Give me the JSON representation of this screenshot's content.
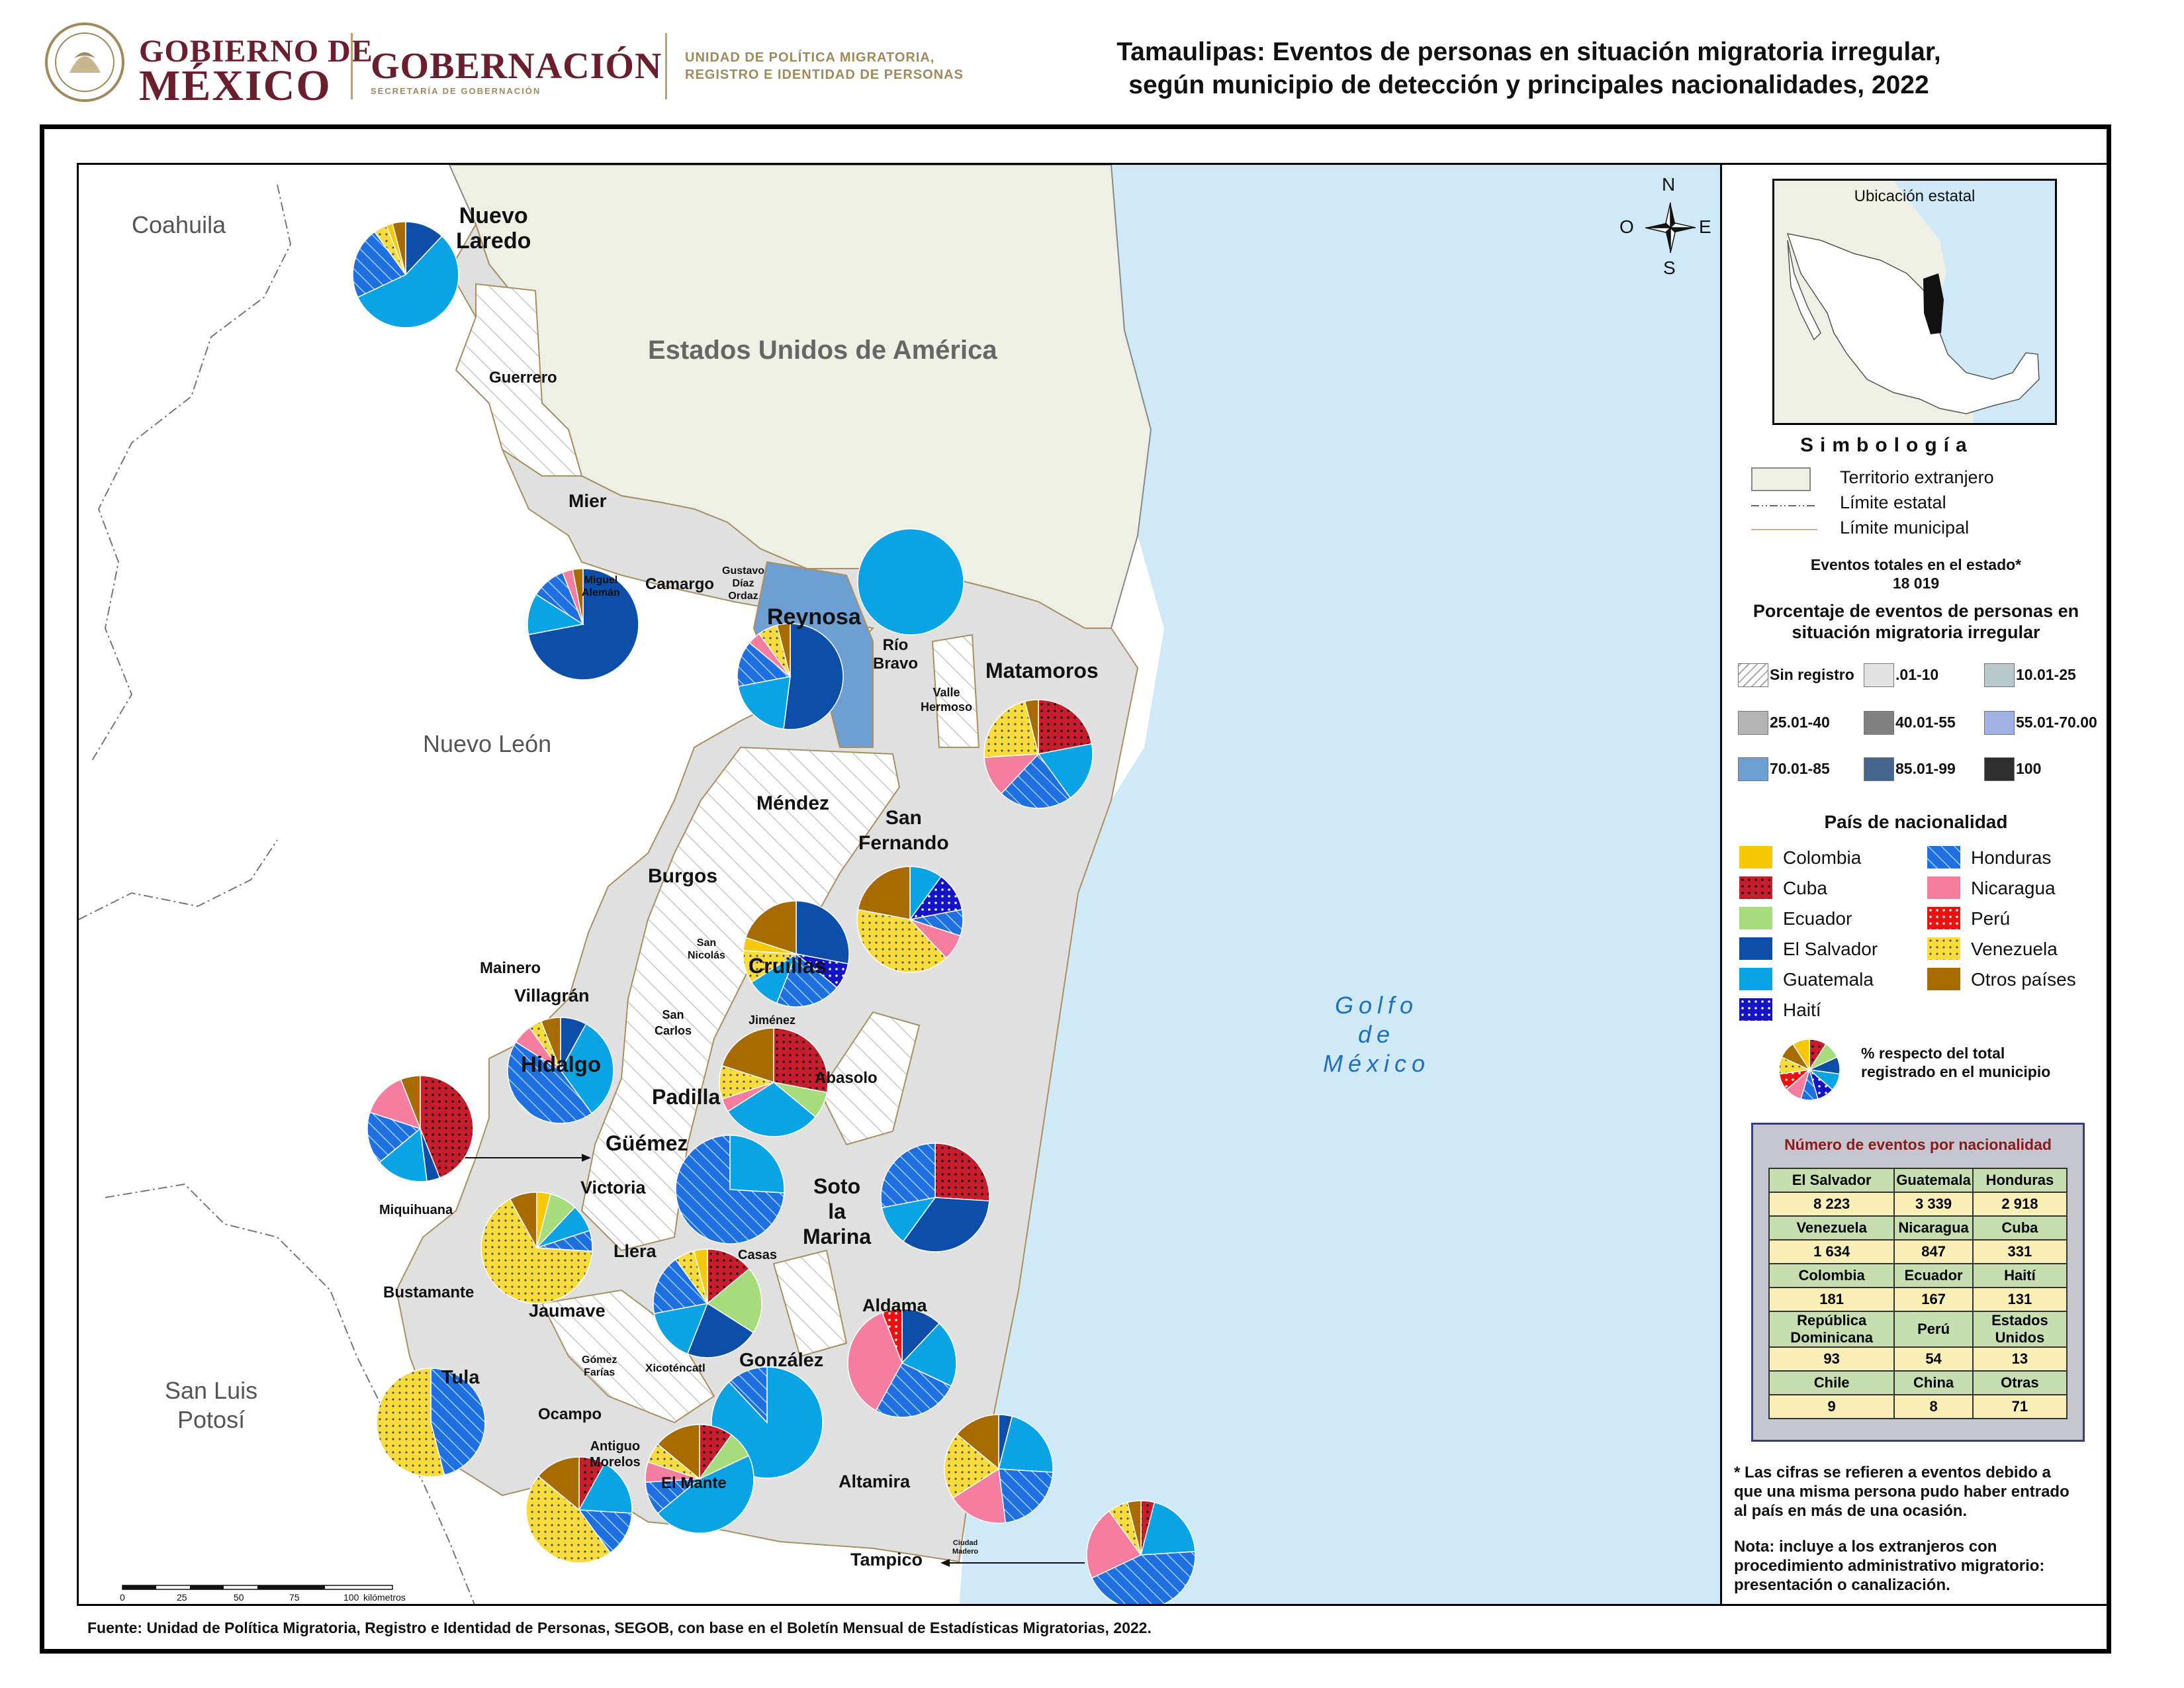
{
  "header": {
    "gob_line1": "GOBIERNO DE",
    "gob_line2": "MÉXICO",
    "gobernacion": "GOBERNACIÓN",
    "gobernacion_sub": "SECRETARÍA DE GOBERNACIÓN",
    "unidad_line1": "UNIDAD DE POLÍTICA MIGRATORIA,",
    "unidad_line2": "REGISTRO E IDENTIDAD DE PERSONAS",
    "title_line1": "Tamaulipas: Eventos de personas en situación migratoria irregular,",
    "title_line2": "según municipio de detección y principales nacionalidades, 2022"
  },
  "colors": {
    "colombia": "#f7c808",
    "cuba": "#c81d2c",
    "ecuador": "#a6dc7c",
    "el_salvador": "#0d4fa8",
    "guatemala": "#0aa3e3",
    "haiti": "#1313c8",
    "honduras": "#1e6fe0",
    "nicaragua": "#f57ea0",
    "peru": "#ee1010",
    "venezuela": "#f7dc3c",
    "otros": "#a86b00",
    "sea": "#cfe9f7",
    "foreign": "#eef0e6",
    "reynosa_fill": "#6e9fd3",
    "municipio_fill": "#e0e0e0"
  },
  "map": {
    "regions": {
      "coahuila": "Coahuila",
      "nuevo_leon": "Nuevo León",
      "san_luis_1": "San Luis",
      "san_luis_2": "Potosí",
      "usa": "Estados Unidos de América",
      "gulf_1": "Golfo",
      "gulf_2": "de",
      "gulf_3": "México"
    },
    "compass": {
      "n": "N",
      "s": "S",
      "e": "E",
      "o": "O"
    },
    "municipios": {
      "nuevo_laredo_1": "Nuevo",
      "nuevo_laredo_2": "Laredo",
      "guerrero": "Guerrero",
      "mier": "Mier",
      "miguel_aleman_1": "Miguel",
      "miguel_aleman_2": "Alemán",
      "camargo": "Camargo",
      "gustavo_1": "Gustavo",
      "gustavo_2": "Díaz",
      "gustavo_3": "Ordaz",
      "reynosa": "Reynosa",
      "rio_bravo_1": "Río",
      "rio_bravo_2": "Bravo",
      "valle_1": "Valle",
      "valle_2": "Hermoso",
      "matamoros": "Matamoros",
      "mendez": "Méndez",
      "san_fernando_1": "San",
      "san_fernando_2": "Fernando",
      "burgos": "Burgos",
      "san_nicolas_1": "San",
      "san_nicolas_2": "Nicolás",
      "cruillas": "Cruillas",
      "mainero": "Mainero",
      "villagran": "Villagrán",
      "san_carlos_1": "San",
      "san_carlos_2": "Carlos",
      "jimenez": "Jiménez",
      "hidalgo": "Hidalgo",
      "abasolo": "Abasolo",
      "padilla": "Padilla",
      "guemez": "Güémez",
      "victoria": "Victoria",
      "soto_1": "Soto",
      "soto_2": "la",
      "soto_3": "Marina",
      "miquihuana": "Miquihuana",
      "llera": "Llera",
      "casas": "Casas",
      "bustamante": "Bustamante",
      "jaumave": "Jaumave",
      "aldama": "Aldama",
      "gonzalez": "González",
      "gomez_1": "Gómez",
      "gomez_2": "Farías",
      "xicotencatl": "Xicoténcatl",
      "tula": "Tula",
      "ocampo": "Ocampo",
      "antiguo_1": "Antiguo",
      "antiguo_2": "Morelos",
      "el_mante": "El Mante",
      "altamira": "Altamira",
      "tampico": "Tampico",
      "madero_1": "Ciudad",
      "madero_2": "Madero"
    },
    "scale": {
      "t0": "0",
      "t1": "25",
      "t2": "50",
      "t3": "75",
      "t4": "100",
      "unit": "kilómetros"
    }
  },
  "legend": {
    "inset_title": "Ubicación estatal",
    "simbologia": "Simbología",
    "territorio": "Territorio extranjero",
    "limite_estatal": "Límite estatal",
    "limite_municipal": "Límite municipal",
    "eventos_totales": "Eventos totales en el estado*",
    "eventos_valor": "18 019",
    "porcentaje_1": "Porcentaje de eventos de personas en",
    "porcentaje_2": "situación migratoria irregular",
    "classes": [
      {
        "label": "Sin registro",
        "color": "#ffffff"
      },
      {
        "label": ".01-10",
        "color": "#e2e2e2"
      },
      {
        "label": "10.01-25",
        "color": "#b9c9cc"
      },
      {
        "label": "25.01-40",
        "color": "#b4b4b4"
      },
      {
        "label": "40.01-55",
        "color": "#808080"
      },
      {
        "label": "55.01-70.00",
        "color": "#9fb2e3"
      },
      {
        "label": "70.01-85",
        "color": "#6e9fd3"
      },
      {
        "label": "85.01-99",
        "color": "#45678f"
      },
      {
        "label": "100",
        "color": "#2e2e2e"
      }
    ],
    "pais_title": "País de nacionalidad",
    "nationalities": [
      {
        "label": "Colombia",
        "key": "colombia"
      },
      {
        "label": "Cuba",
        "key": "cuba"
      },
      {
        "label": "Ecuador",
        "key": "ecuador"
      },
      {
        "label": "El Salvador",
        "key": "el_salvador"
      },
      {
        "label": "Guatemala",
        "key": "guatemala"
      },
      {
        "label": "Haití",
        "key": "haiti"
      },
      {
        "label": "Honduras",
        "key": "honduras"
      },
      {
        "label": "Nicaragua",
        "key": "nicaragua"
      },
      {
        "label": "Perú",
        "key": "peru"
      },
      {
        "label": "Venezuela",
        "key": "venezuela"
      },
      {
        "label": "Otros países",
        "key": "otros"
      }
    ],
    "pie_note_1": "% respecto del total",
    "pie_note_2": "registrado en el municipio",
    "count_title": "Número de eventos por nacionalidad",
    "counts": [
      [
        {
          "h": "El Salvador",
          "v": "8 223"
        },
        {
          "h": "Guatemala",
          "v": "3 339"
        },
        {
          "h": "Honduras",
          "v": "2 918"
        }
      ],
      [
        {
          "h": "Venezuela",
          "v": "1 634"
        },
        {
          "h": "Nicaragua",
          "v": "847"
        },
        {
          "h": "Cuba",
          "v": "331"
        }
      ],
      [
        {
          "h": "Colombia",
          "v": "181"
        },
        {
          "h": "Ecuador",
          "v": "167"
        },
        {
          "h": "Haití",
          "v": "131"
        }
      ],
      [
        {
          "h": "República Dominicana",
          "v": "93"
        },
        {
          "h": "Perú",
          "v": "54"
        },
        {
          "h": "Estados Unidos",
          "v": "13"
        }
      ],
      [
        {
          "h": "Chile",
          "v": "9"
        },
        {
          "h": "China",
          "v": "8"
        },
        {
          "h": "Otras",
          "v": "71"
        }
      ]
    ],
    "note1_1": "* Las cifras se refieren a eventos debido a",
    "note1_2": "que una misma persona pudo haber entrado",
    "note1_3": "al país en más de una ocasión.",
    "note2_1": "Nota: incluye a los extranjeros con",
    "note2_2": "procedimiento administrativo migratorio:",
    "note2_3": "presentación o canalización."
  },
  "source": "Fuente: Unidad de Política Migratoria, Registro e Identidad de Personas, SEGOB, con base en el Boletín Mensual de Estadísticas Migratorias, 2022."
}
